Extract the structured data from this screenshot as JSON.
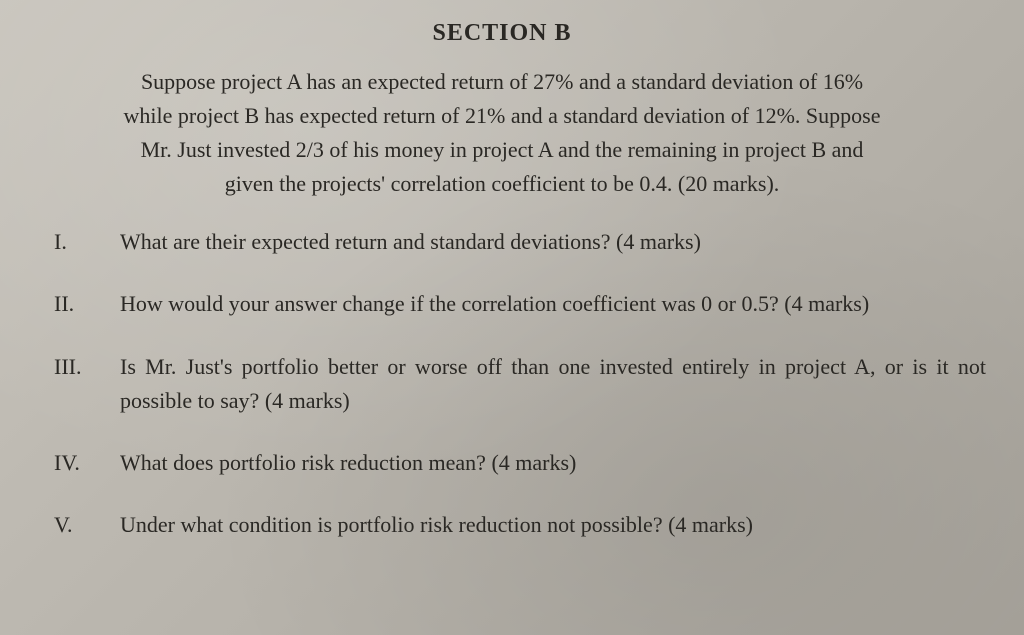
{
  "section_title": "SECTION B",
  "preamble_lines": [
    "Suppose project A has an expected return of 27% and a standard deviation of 16%",
    "while project B has expected return of 21% and a standard deviation of 12%. Suppose",
    "Mr. Just invested 2/3 of his money in project A and the remaining in project B and",
    "given the projects' correlation coefficient to be 0.4. (20 marks)."
  ],
  "questions": [
    {
      "number": "I.",
      "text": "What are their expected return and standard deviations? (4 marks)",
      "justify": false
    },
    {
      "number": "II.",
      "text": "How would your answer change if the correlation coefficient was 0 or 0.5? (4 marks)",
      "justify": true
    },
    {
      "number": "III.",
      "text": "Is Mr. Just's portfolio better or worse off than one invested entirely in project A, or is it not possible to say? (4 marks)",
      "justify": true
    },
    {
      "number": "IV.",
      "text": "What does portfolio risk reduction mean? (4 marks)",
      "justify": false
    },
    {
      "number": "V.",
      "text": "Under what condition is portfolio risk reduction not possible? (4 marks)",
      "justify": false
    }
  ],
  "styling": {
    "background_gradient": [
      "#c8c4bc",
      "#b8b4ac",
      "#a8a49c"
    ],
    "text_color": "#2a2824",
    "font_family": "Georgia, Times New Roman, serif",
    "title_fontsize": 24,
    "body_fontsize": 22,
    "line_height": 1.55
  }
}
